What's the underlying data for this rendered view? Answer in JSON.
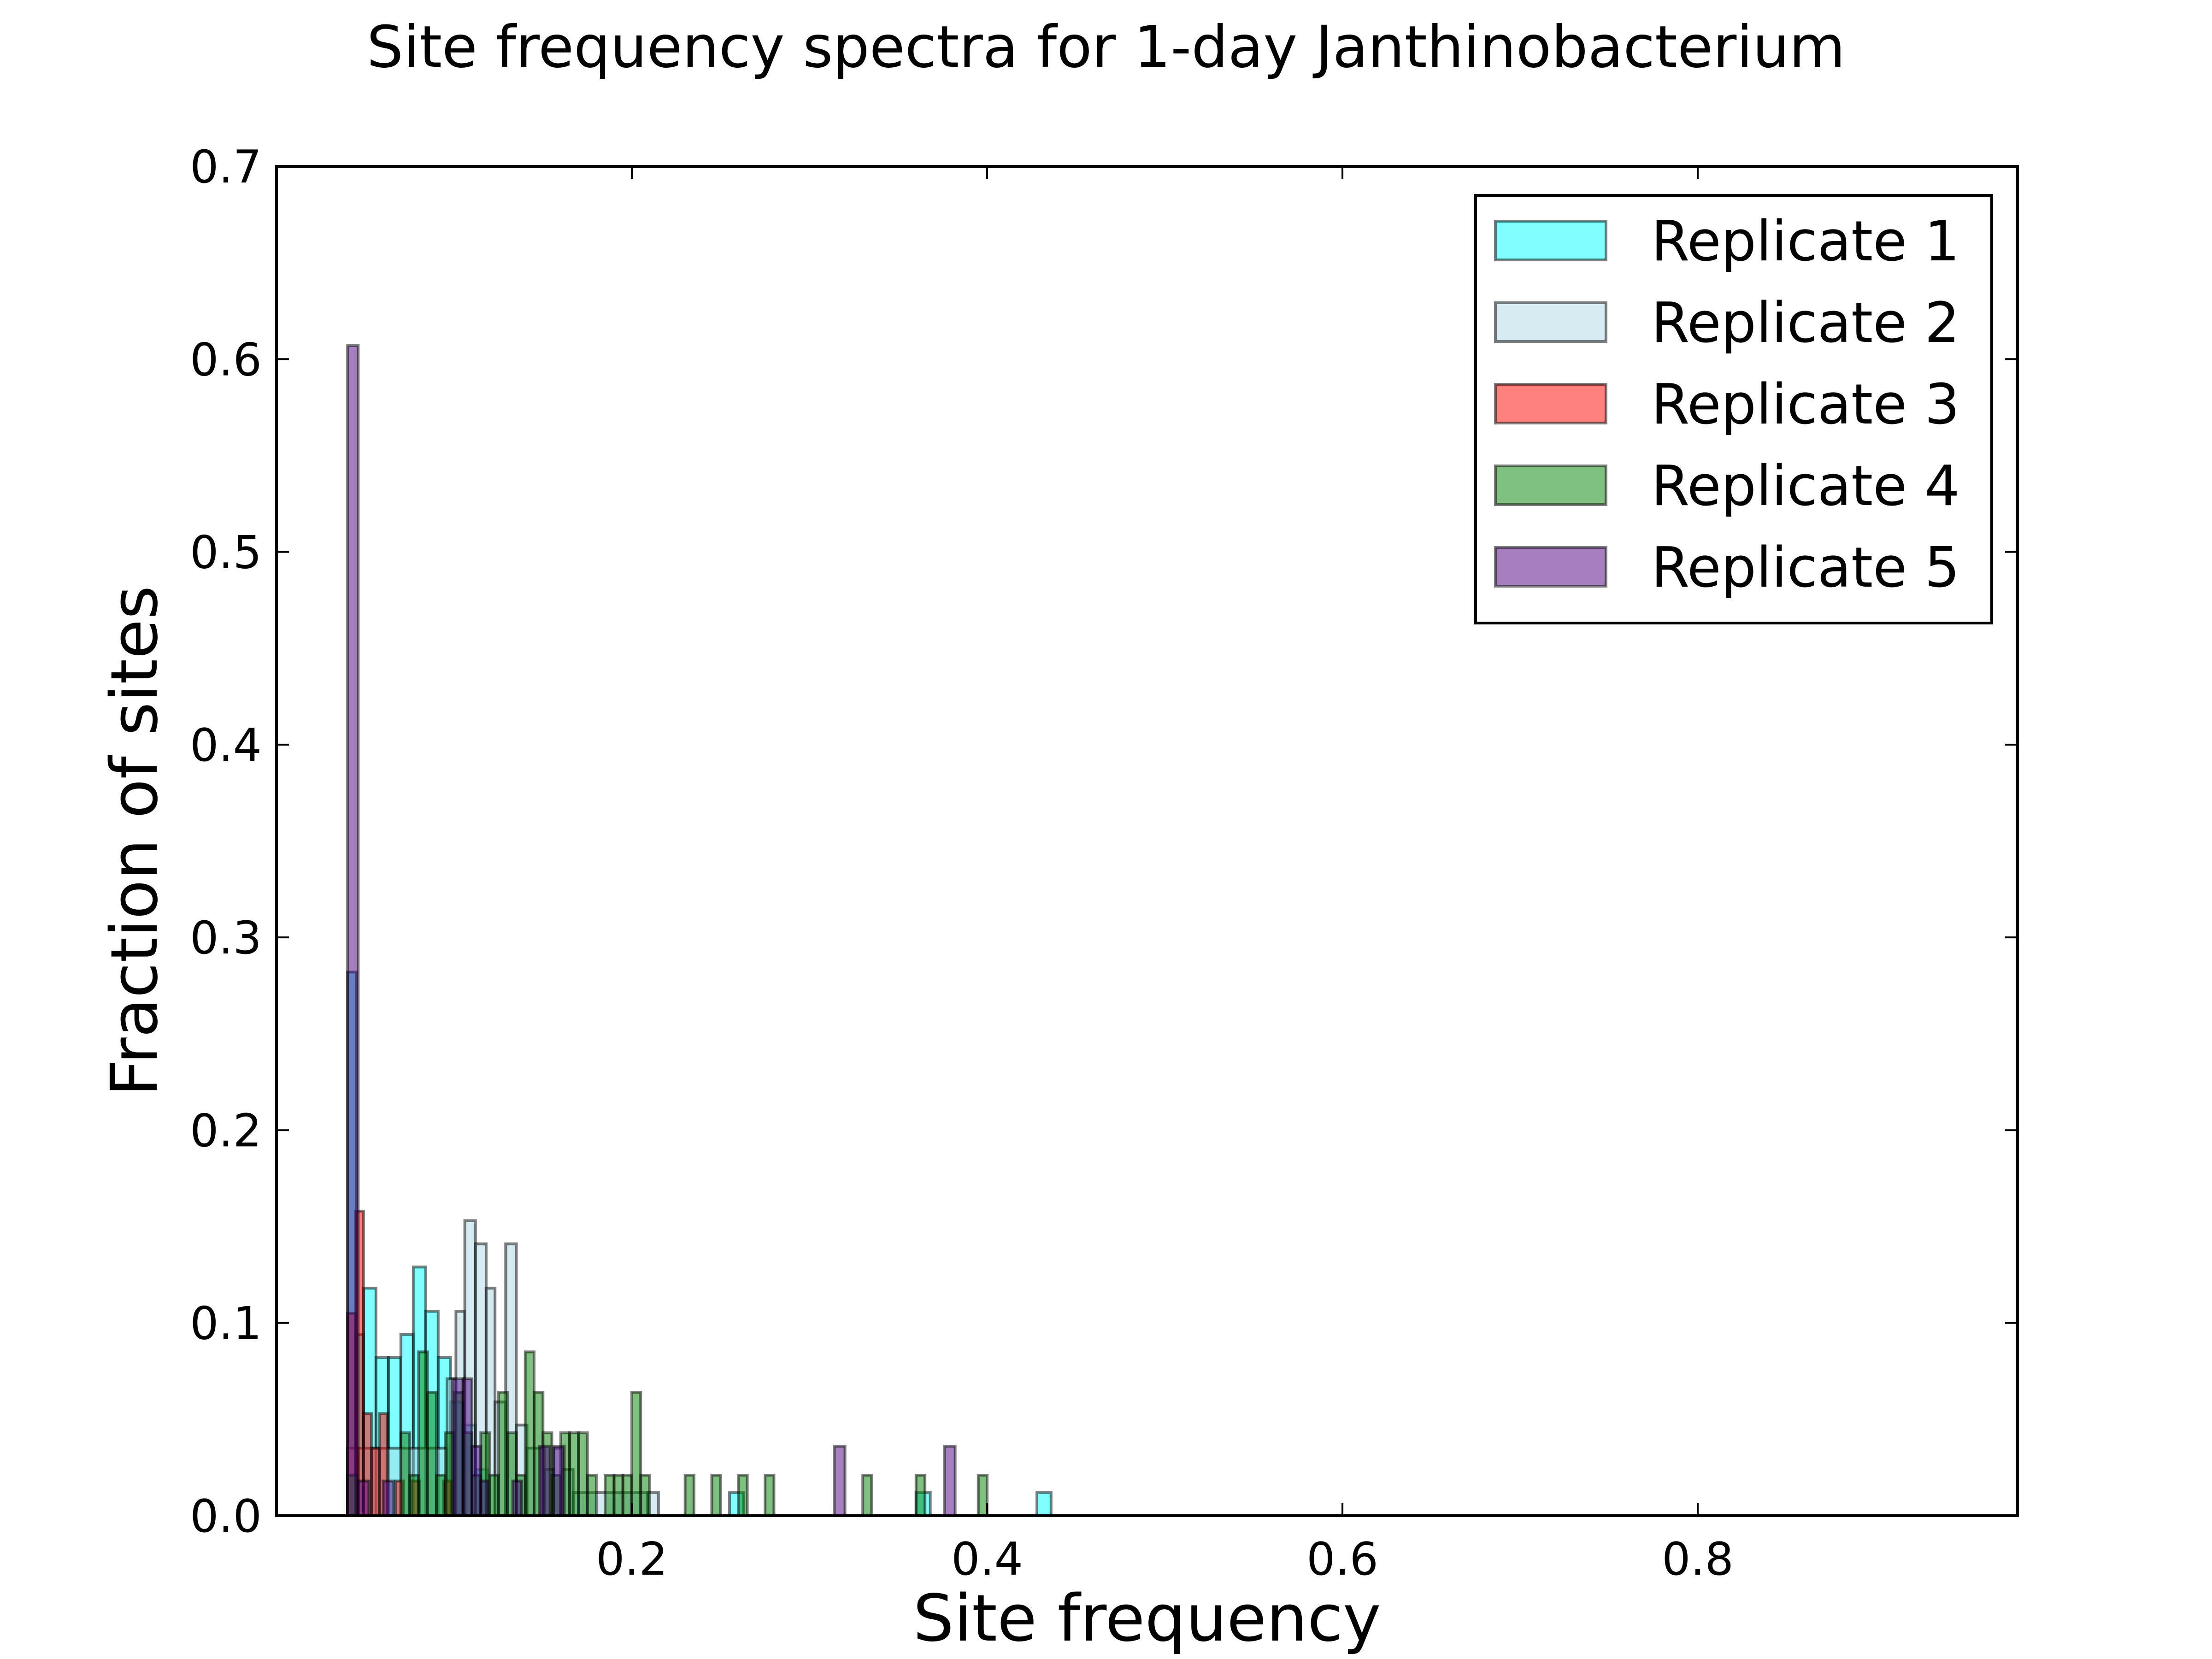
{
  "chart_data": {
    "type": "histogram",
    "title": "Site frequency spectra for 1-day Janthinobacterium",
    "xlabel": "Site frequency",
    "ylabel": "Fraction of sites",
    "xlim": [
      0.0,
      0.98
    ],
    "ylim": [
      0.0,
      0.7
    ],
    "xticks": [
      0.2,
      0.4,
      0.6,
      0.8
    ],
    "xtick_labels": [
      "0.2",
      "0.4",
      "0.6",
      "0.8"
    ],
    "yticks": [
      0.0,
      0.1,
      0.2,
      0.3,
      0.4,
      0.5,
      0.6,
      0.7
    ],
    "ytick_labels": [
      "0.0",
      "0.1",
      "0.2",
      "0.3",
      "0.4",
      "0.5",
      "0.6",
      "0.7"
    ],
    "grid": false,
    "legend_position": "top-right",
    "series": [
      {
        "name": "Replicate 1",
        "color": "#00ffff",
        "bins": [
          {
            "x0": 0.04,
            "x1": 0.045,
            "y": 0.282
          },
          {
            "x0": 0.045,
            "x1": 0.049,
            "y": 0.094
          },
          {
            "x0": 0.049,
            "x1": 0.056,
            "y": 0.118
          },
          {
            "x0": 0.056,
            "x1": 0.063,
            "y": 0.082
          },
          {
            "x0": 0.063,
            "x1": 0.07,
            "y": 0.082
          },
          {
            "x0": 0.07,
            "x1": 0.077,
            "y": 0.094
          },
          {
            "x0": 0.077,
            "x1": 0.084,
            "y": 0.129
          },
          {
            "x0": 0.084,
            "x1": 0.091,
            "y": 0.106
          },
          {
            "x0": 0.091,
            "x1": 0.098,
            "y": 0.082
          },
          {
            "x0": 0.098,
            "x1": 0.105,
            "y": 0.059
          },
          {
            "x0": 0.105,
            "x1": 0.112,
            "y": 0.047
          },
          {
            "x0": 0.112,
            "x1": 0.119,
            "y": 0.024
          },
          {
            "x0": 0.255,
            "x1": 0.263,
            "y": 0.012
          },
          {
            "x0": 0.36,
            "x1": 0.368,
            "y": 0.012
          },
          {
            "x0": 0.428,
            "x1": 0.436,
            "y": 0.012
          }
        ]
      },
      {
        "name": "Replicate 2",
        "color": "#add8e6",
        "bins": [
          {
            "x0": 0.04,
            "x1": 0.046,
            "y": 0.035
          },
          {
            "x0": 0.046,
            "x1": 0.096,
            "y": 0.035
          },
          {
            "x0": 0.096,
            "x1": 0.101,
            "y": 0.071
          },
          {
            "x0": 0.101,
            "x1": 0.106,
            "y": 0.106
          },
          {
            "x0": 0.106,
            "x1": 0.112,
            "y": 0.153
          },
          {
            "x0": 0.112,
            "x1": 0.118,
            "y": 0.141
          },
          {
            "x0": 0.118,
            "x1": 0.123,
            "y": 0.118
          },
          {
            "x0": 0.123,
            "x1": 0.129,
            "y": 0.059
          },
          {
            "x0": 0.129,
            "x1": 0.135,
            "y": 0.141
          },
          {
            "x0": 0.135,
            "x1": 0.141,
            "y": 0.047
          },
          {
            "x0": 0.141,
            "x1": 0.151,
            "y": 0.035
          },
          {
            "x0": 0.151,
            "x1": 0.156,
            "y": 0.024
          },
          {
            "x0": 0.156,
            "x1": 0.161,
            "y": 0.035
          },
          {
            "x0": 0.161,
            "x1": 0.167,
            "y": 0.024
          },
          {
            "x0": 0.167,
            "x1": 0.209,
            "y": 0.012
          },
          {
            "x0": 0.209,
            "x1": 0.215,
            "y": 0.012
          }
        ]
      },
      {
        "name": "Replicate 3",
        "color": "#ff0000",
        "bins": [
          {
            "x0": 0.04,
            "x1": 0.0445,
            "y": 0.105
          },
          {
            "x0": 0.0445,
            "x1": 0.049,
            "y": 0.158
          },
          {
            "x0": 0.049,
            "x1": 0.0535,
            "y": 0.053
          },
          {
            "x0": 0.0535,
            "x1": 0.058,
            "y": 0.035
          },
          {
            "x0": 0.058,
            "x1": 0.0625,
            "y": 0.053
          },
          {
            "x0": 0.067,
            "x1": 0.0715,
            "y": 0.018
          },
          {
            "x0": 0.076,
            "x1": 0.0805,
            "y": 0.018
          },
          {
            "x0": 0.094,
            "x1": 0.0985,
            "y": 0.018
          }
        ]
      },
      {
        "name": "Replicate 4",
        "color": "#008000",
        "bins": [
          {
            "x0": 0.04,
            "x1": 0.045,
            "y": 0.021
          },
          {
            "x0": 0.07,
            "x1": 0.075,
            "y": 0.043
          },
          {
            "x0": 0.075,
            "x1": 0.08,
            "y": 0.021
          },
          {
            "x0": 0.08,
            "x1": 0.085,
            "y": 0.085
          },
          {
            "x0": 0.085,
            "x1": 0.09,
            "y": 0.064
          },
          {
            "x0": 0.09,
            "x1": 0.095,
            "y": 0.021
          },
          {
            "x0": 0.095,
            "x1": 0.1,
            "y": 0.043
          },
          {
            "x0": 0.1,
            "x1": 0.105,
            "y": 0.064
          },
          {
            "x0": 0.105,
            "x1": 0.11,
            "y": 0.043
          },
          {
            "x0": 0.11,
            "x1": 0.115,
            "y": 0.021
          },
          {
            "x0": 0.115,
            "x1": 0.12,
            "y": 0.043
          },
          {
            "x0": 0.12,
            "x1": 0.125,
            "y": 0.021
          },
          {
            "x0": 0.125,
            "x1": 0.13,
            "y": 0.064
          },
          {
            "x0": 0.13,
            "x1": 0.135,
            "y": 0.043
          },
          {
            "x0": 0.135,
            "x1": 0.14,
            "y": 0.021
          },
          {
            "x0": 0.14,
            "x1": 0.145,
            "y": 0.085
          },
          {
            "x0": 0.145,
            "x1": 0.15,
            "y": 0.064
          },
          {
            "x0": 0.15,
            "x1": 0.155,
            "y": 0.043
          },
          {
            "x0": 0.155,
            "x1": 0.16,
            "y": 0.021
          },
          {
            "x0": 0.16,
            "x1": 0.165,
            "y": 0.043
          },
          {
            "x0": 0.165,
            "x1": 0.17,
            "y": 0.043
          },
          {
            "x0": 0.17,
            "x1": 0.175,
            "y": 0.043
          },
          {
            "x0": 0.175,
            "x1": 0.18,
            "y": 0.021
          },
          {
            "x0": 0.185,
            "x1": 0.19,
            "y": 0.021
          },
          {
            "x0": 0.19,
            "x1": 0.195,
            "y": 0.021
          },
          {
            "x0": 0.195,
            "x1": 0.2,
            "y": 0.021
          },
          {
            "x0": 0.2,
            "x1": 0.205,
            "y": 0.064
          },
          {
            "x0": 0.205,
            "x1": 0.21,
            "y": 0.021
          },
          {
            "x0": 0.23,
            "x1": 0.235,
            "y": 0.021
          },
          {
            "x0": 0.245,
            "x1": 0.25,
            "y": 0.021
          },
          {
            "x0": 0.26,
            "x1": 0.265,
            "y": 0.021
          },
          {
            "x0": 0.275,
            "x1": 0.28,
            "y": 0.021
          },
          {
            "x0": 0.33,
            "x1": 0.335,
            "y": 0.021
          },
          {
            "x0": 0.36,
            "x1": 0.365,
            "y": 0.021
          },
          {
            "x0": 0.395,
            "x1": 0.4,
            "y": 0.021
          }
        ]
      },
      {
        "name": "Replicate 5",
        "color": "#4b0082",
        "bins": [
          {
            "x0": 0.04,
            "x1": 0.046,
            "y": 0.607
          },
          {
            "x0": 0.046,
            "x1": 0.052,
            "y": 0.018
          },
          {
            "x0": 0.06,
            "x1": 0.066,
            "y": 0.018
          },
          {
            "x0": 0.099,
            "x1": 0.105,
            "y": 0.071
          },
          {
            "x0": 0.105,
            "x1": 0.11,
            "y": 0.071
          },
          {
            "x0": 0.11,
            "x1": 0.115,
            "y": 0.036
          },
          {
            "x0": 0.115,
            "x1": 0.119,
            "y": 0.018
          },
          {
            "x0": 0.133,
            "x1": 0.138,
            "y": 0.018
          },
          {
            "x0": 0.148,
            "x1": 0.154,
            "y": 0.036
          },
          {
            "x0": 0.156,
            "x1": 0.162,
            "y": 0.036
          },
          {
            "x0": 0.314,
            "x1": 0.32,
            "y": 0.036
          },
          {
            "x0": 0.376,
            "x1": 0.382,
            "y": 0.036
          }
        ]
      }
    ]
  }
}
